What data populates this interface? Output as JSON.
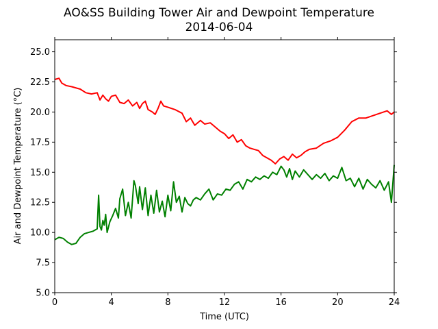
{
  "chart_data": {
    "type": "line",
    "title": "AO&SS Building Tower Air and Dewpoint Temperature",
    "subtitle": "2014-06-04",
    "xlabel": "Time (UTC)",
    "ylabel": "Air and Dewpoint Temperature (°C)",
    "xlim": [
      0,
      24
    ],
    "ylim": [
      5.0,
      26.0
    ],
    "xticks": [
      0,
      4,
      8,
      12,
      16,
      20,
      24
    ],
    "xtick_labels": [
      "0",
      "4",
      "8",
      "12",
      "16",
      "20",
      "24"
    ],
    "yticks": [
      5.0,
      7.5,
      10.0,
      12.5,
      15.0,
      17.5,
      20.0,
      22.5,
      25.0
    ],
    "ytick_labels": [
      "5.0",
      "7.5",
      "10.0",
      "12.5",
      "15.0",
      "17.5",
      "20.0",
      "22.5",
      "25.0"
    ],
    "grid": false,
    "series": [
      {
        "color": "#ff0000",
        "x": [
          0,
          0.3,
          0.5,
          0.8,
          1.2,
          1.8,
          2.2,
          2.6,
          3.0,
          3.2,
          3.4,
          3.6,
          3.8,
          4.0,
          4.3,
          4.6,
          4.9,
          5.2,
          5.5,
          5.8,
          6.0,
          6.2,
          6.4,
          6.6,
          6.9,
          7.1,
          7.3,
          7.5,
          7.7,
          8.0,
          8.5,
          9.0,
          9.3,
          9.6,
          9.9,
          10.3,
          10.6,
          11.0,
          11.4,
          11.7,
          12.0,
          12.3,
          12.6,
          12.9,
          13.2,
          13.5,
          13.8,
          14.1,
          14.4,
          14.7,
          15.0,
          15.3,
          15.6,
          15.9,
          16.2,
          16.5,
          16.8,
          17.1,
          17.4,
          17.7,
          18.0,
          18.5,
          19.0,
          19.5,
          20.0,
          20.5,
          21.0,
          21.5,
          22.0,
          22.5,
          23.0,
          23.5,
          23.8,
          24.0
        ],
        "y": [
          22.7,
          22.8,
          22.4,
          22.2,
          22.1,
          21.9,
          21.6,
          21.5,
          21.6,
          21.0,
          21.4,
          21.1,
          20.9,
          21.3,
          21.4,
          20.8,
          20.7,
          21.0,
          20.5,
          20.8,
          20.3,
          20.7,
          20.9,
          20.2,
          20.0,
          19.8,
          20.3,
          20.9,
          20.5,
          20.4,
          20.2,
          19.9,
          19.2,
          19.5,
          18.9,
          19.3,
          19.0,
          19.1,
          18.7,
          18.4,
          18.2,
          17.8,
          18.1,
          17.5,
          17.7,
          17.2,
          17.0,
          16.9,
          16.8,
          16.4,
          16.2,
          16.0,
          15.7,
          16.1,
          16.3,
          16.0,
          16.5,
          16.2,
          16.4,
          16.7,
          16.9,
          17.0,
          17.4,
          17.6,
          17.9,
          18.5,
          19.2,
          19.5,
          19.5,
          19.7,
          19.9,
          20.1,
          19.8,
          20.0
        ]
      },
      {
        "color": "#008000",
        "x": [
          0,
          0.3,
          0.6,
          0.9,
          1.2,
          1.5,
          1.8,
          2.1,
          2.4,
          2.7,
          3.0,
          3.1,
          3.2,
          3.3,
          3.4,
          3.5,
          3.6,
          3.7,
          3.9,
          4.1,
          4.3,
          4.5,
          4.6,
          4.8,
          5.0,
          5.2,
          5.4,
          5.6,
          5.7,
          5.9,
          6.0,
          6.2,
          6.4,
          6.6,
          6.8,
          7.0,
          7.2,
          7.4,
          7.6,
          7.8,
          8.0,
          8.2,
          8.4,
          8.6,
          8.8,
          9.0,
          9.2,
          9.4,
          9.6,
          9.8,
          10.0,
          10.3,
          10.6,
          10.9,
          11.2,
          11.5,
          11.8,
          12.1,
          12.4,
          12.7,
          13.0,
          13.3,
          13.6,
          13.9,
          14.2,
          14.5,
          14.8,
          15.1,
          15.4,
          15.7,
          16.0,
          16.2,
          16.4,
          16.6,
          16.8,
          17.0,
          17.3,
          17.6,
          17.9,
          18.2,
          18.5,
          18.8,
          19.1,
          19.4,
          19.7,
          20.0,
          20.3,
          20.6,
          20.9,
          21.2,
          21.5,
          21.8,
          22.1,
          22.4,
          22.7,
          23.0,
          23.3,
          23.6,
          23.8,
          23.9,
          24.0
        ],
        "y": [
          9.4,
          9.6,
          9.5,
          9.2,
          9.0,
          9.1,
          9.6,
          9.9,
          10.0,
          10.1,
          10.3,
          13.1,
          10.5,
          10.2,
          11.0,
          10.6,
          11.5,
          10.0,
          10.9,
          11.4,
          12.0,
          11.2,
          12.8,
          13.6,
          11.4,
          12.5,
          11.2,
          14.3,
          13.9,
          12.4,
          13.8,
          11.9,
          13.7,
          11.4,
          13.1,
          11.6,
          13.5,
          11.7,
          12.6,
          11.3,
          13.1,
          11.8,
          14.2,
          12.5,
          13.0,
          11.7,
          12.9,
          12.4,
          12.2,
          12.7,
          12.9,
          12.7,
          13.2,
          13.6,
          12.7,
          13.2,
          13.1,
          13.6,
          13.5,
          14.0,
          14.2,
          13.6,
          14.4,
          14.2,
          14.6,
          14.4,
          14.7,
          14.5,
          15.0,
          14.8,
          15.5,
          15.2,
          14.6,
          15.3,
          14.4,
          15.1,
          14.6,
          15.2,
          14.8,
          14.4,
          14.8,
          14.5,
          14.9,
          14.3,
          14.7,
          14.5,
          15.4,
          14.3,
          14.5,
          13.8,
          14.5,
          13.6,
          14.4,
          14.0,
          13.7,
          14.3,
          13.5,
          14.2,
          12.5,
          14.0,
          15.6
        ]
      }
    ]
  }
}
